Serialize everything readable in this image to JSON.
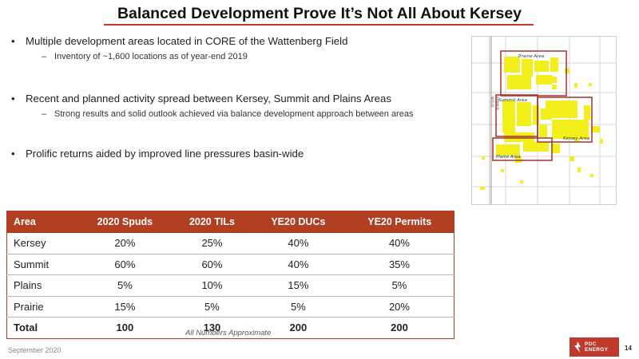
{
  "slide": {
    "title": "Balanced Development Prove It’s Not All About Kersey",
    "date": "September 2020",
    "page_number": "14",
    "logo_text_line1": "PDC",
    "logo_text_line2": "ENERGY",
    "note": "All Numbers Approximate"
  },
  "bullets": [
    {
      "text": "Multiple development areas located in CORE of the Wattenberg Field",
      "sub": "Inventory of ~1,600 locations as of year-end 2019"
    },
    {
      "text": "Recent and planned activity spread between Kersey, Summit and Plains Areas",
      "sub": "Strong results and solid outlook achieved via balance development approach between areas"
    },
    {
      "text": "Prolific returns aided by improved line pressures basin-wide",
      "sub": ""
    }
  ],
  "map": {
    "labels": {
      "prairie": "Prairie Area",
      "summit": "Summit Area",
      "kersey": "Kersey Area",
      "plains": "Plains Area",
      "county": "WELD",
      "county2": "LARIMER"
    },
    "colors": {
      "acreage": "#f2ef1b",
      "box": "#a5322d",
      "grid": "#d6d6d6"
    }
  },
  "table": {
    "headers": [
      "Area",
      "2020 Spuds",
      "2020 TILs",
      "YE20 DUCs",
      "YE20 Permits"
    ],
    "rows": [
      [
        "Kersey",
        "20%",
        "25%",
        "40%",
        "40%"
      ],
      [
        "Summit",
        "60%",
        "60%",
        "40%",
        "35%"
      ],
      [
        "Plains",
        "5%",
        "10%",
        "15%",
        "5%"
      ],
      [
        "Prairie",
        "15%",
        "5%",
        "5%",
        "20%"
      ]
    ],
    "total": [
      "Total",
      "100",
      "130",
      "200",
      "200"
    ]
  },
  "colors": {
    "accent": "#b13f22"
  }
}
